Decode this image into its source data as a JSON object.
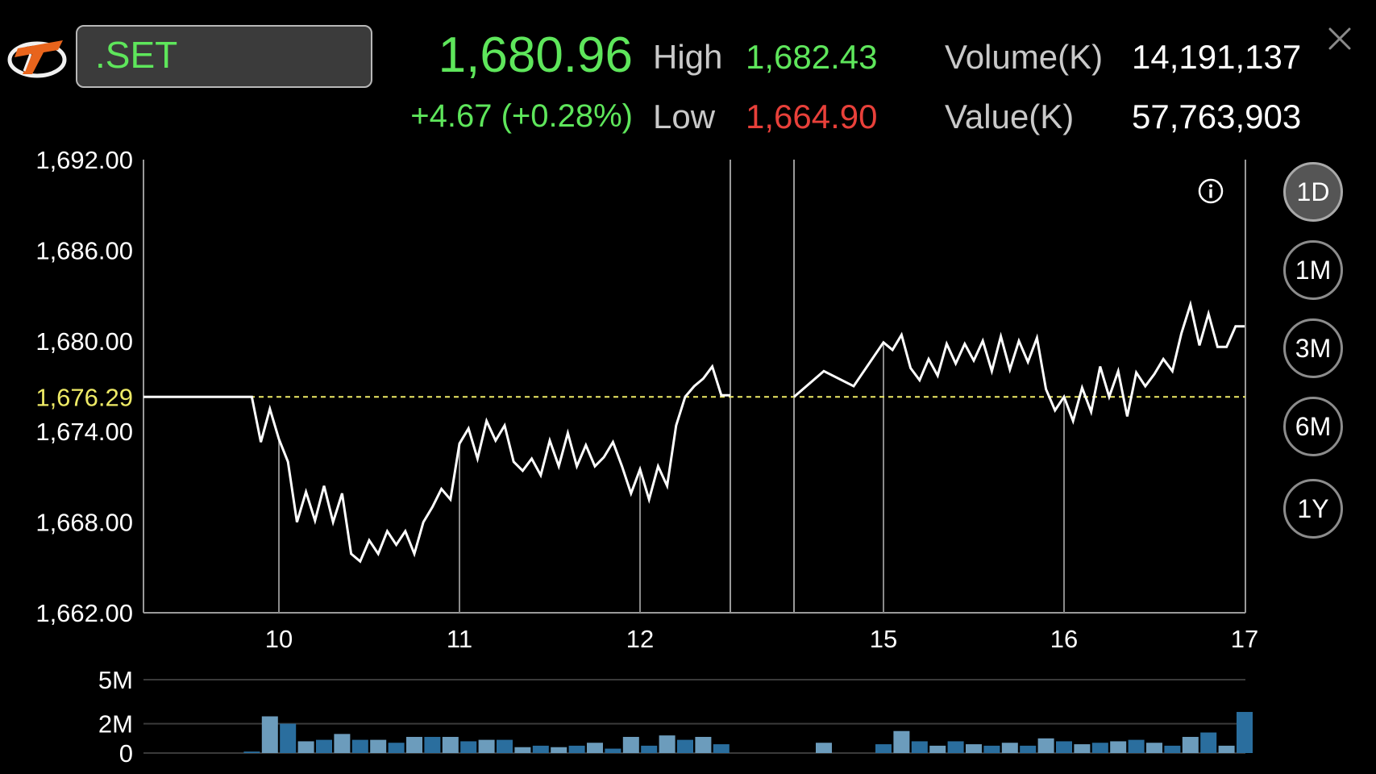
{
  "header": {
    "symbol": ".SET",
    "price": "1,680.96",
    "change": "+4.67 (+0.28%)",
    "high_label": "High",
    "high_value": "1,682.43",
    "low_label": "Low",
    "low_value": "1,664.90",
    "volume_label": "Volume(K)",
    "volume_value": "14,191,137",
    "value_label": "Value(K)",
    "value_value": "57,763,903"
  },
  "colors": {
    "up": "#5ee65b",
    "down": "#e8403a",
    "reference": "#eeea66",
    "line": "#ffffff",
    "volume_dark": "#2a6e9e",
    "volume_light": "#6c9cbc"
  },
  "icons": {
    "logo": "settrade-logo",
    "close": "close-icon",
    "info": "info-icon"
  },
  "periods": [
    {
      "label": "1D",
      "active": true
    },
    {
      "label": "1M",
      "active": false
    },
    {
      "label": "3M",
      "active": false
    },
    {
      "label": "6M",
      "active": false
    },
    {
      "label": "1Y",
      "active": false
    }
  ],
  "chart_data": {
    "type": "line",
    "title": "",
    "xlabel": "",
    "ylabel": "",
    "ylim": [
      1662,
      1692
    ],
    "y_ticks": [
      {
        "value": 1692,
        "label": "1,692.00"
      },
      {
        "value": 1686,
        "label": "1,686.00"
      },
      {
        "value": 1680,
        "label": "1,680.00"
      },
      {
        "value": 1674,
        "label": "1,674.00"
      },
      {
        "value": 1668,
        "label": "1,668.00"
      },
      {
        "value": 1662,
        "label": "1,662.00"
      }
    ],
    "reference_line": {
      "value": 1676.29,
      "label": "1,676.29"
    },
    "x_range": [
      9.25,
      17
    ],
    "x_ticks": [
      {
        "value": 10,
        "label": "10"
      },
      {
        "value": 11,
        "label": "11"
      },
      {
        "value": 12,
        "label": "12"
      },
      {
        "value": 15,
        "label": "15"
      },
      {
        "value": 16,
        "label": "16"
      },
      {
        "value": 17,
        "label": "17"
      }
    ],
    "session_gap": [
      12.5,
      14.85
    ],
    "series": [
      {
        "segments": [
          [
            [
              9.25,
              1676.29
            ],
            [
              9.85,
              1676.29
            ],
            [
              9.9,
              1673.3
            ],
            [
              9.95,
              1675.5
            ],
            [
              10.0,
              1673.5
            ],
            [
              10.05,
              1672
            ],
            [
              10.1,
              1668
            ],
            [
              10.15,
              1670
            ],
            [
              10.2,
              1668.1
            ],
            [
              10.25,
              1670.4
            ],
            [
              10.3,
              1668
            ],
            [
              10.35,
              1669.9
            ],
            [
              10.4,
              1665.9
            ],
            [
              10.45,
              1665.4
            ],
            [
              10.5,
              1666.8
            ],
            [
              10.55,
              1665.9
            ],
            [
              10.6,
              1667.4
            ],
            [
              10.65,
              1666.5
            ],
            [
              10.7,
              1667.4
            ],
            [
              10.75,
              1665.9
            ],
            [
              10.8,
              1668
            ],
            [
              10.85,
              1669
            ],
            [
              10.9,
              1670.2
            ],
            [
              10.95,
              1669.5
            ],
            [
              11.0,
              1673.2
            ],
            [
              11.05,
              1674.2
            ],
            [
              11.1,
              1672.2
            ],
            [
              11.15,
              1674.7
            ],
            [
              11.2,
              1673.4
            ],
            [
              11.25,
              1674.4
            ],
            [
              11.3,
              1672
            ],
            [
              11.35,
              1671.4
            ],
            [
              11.4,
              1672.2
            ],
            [
              11.45,
              1671.1
            ],
            [
              11.5,
              1673.4
            ],
            [
              11.55,
              1671.7
            ],
            [
              11.6,
              1673.9
            ],
            [
              11.65,
              1671.7
            ],
            [
              11.7,
              1673.1
            ],
            [
              11.75,
              1671.7
            ],
            [
              11.8,
              1672.3
            ],
            [
              11.85,
              1673.3
            ],
            [
              11.9,
              1671.7
            ],
            [
              11.95,
              1669.9
            ],
            [
              12.0,
              1671.5
            ],
            [
              12.05,
              1669.5
            ],
            [
              12.1,
              1671.7
            ],
            [
              12.15,
              1670.4
            ],
            [
              12.2,
              1674.4
            ],
            [
              12.25,
              1676.3
            ],
            [
              12.3,
              1677
            ],
            [
              12.35,
              1677.5
            ],
            [
              12.4,
              1678.3
            ],
            [
              12.45,
              1676.4
            ],
            [
              12.5,
              1676.4
            ]
          ],
          [
            [
              14.85,
              1676.29
            ],
            [
              14.9,
              1678
            ],
            [
              14.95,
              1677
            ],
            [
              15.0,
              1679.9
            ],
            [
              15.05,
              1679.4
            ],
            [
              15.1,
              1680.4
            ],
            [
              15.15,
              1678.2
            ],
            [
              15.2,
              1677.4
            ],
            [
              15.25,
              1678.8
            ],
            [
              15.3,
              1677.7
            ],
            [
              15.35,
              1679.8
            ],
            [
              15.4,
              1678.5
            ],
            [
              15.45,
              1679.8
            ],
            [
              15.5,
              1678.7
            ],
            [
              15.55,
              1680
            ],
            [
              15.6,
              1678
            ],
            [
              15.65,
              1680.3
            ],
            [
              15.7,
              1678.1
            ],
            [
              15.75,
              1680
            ],
            [
              15.8,
              1678.6
            ],
            [
              15.85,
              1680.2
            ],
            [
              15.9,
              1676.8
            ],
            [
              15.95,
              1675.4
            ],
            [
              16.0,
              1676.3
            ],
            [
              16.05,
              1674.7
            ],
            [
              16.1,
              1676.9
            ],
            [
              16.15,
              1675.3
            ],
            [
              16.2,
              1678.3
            ],
            [
              16.25,
              1676.3
            ],
            [
              16.3,
              1678
            ],
            [
              16.35,
              1675
            ],
            [
              16.4,
              1677.9
            ],
            [
              16.45,
              1677
            ],
            [
              16.5,
              1677.8
            ],
            [
              16.55,
              1678.8
            ],
            [
              16.6,
              1678
            ],
            [
              16.65,
              1680.5
            ],
            [
              16.7,
              1682.4
            ],
            [
              16.75,
              1679.7
            ],
            [
              16.8,
              1681.8
            ],
            [
              16.85,
              1679.6
            ],
            [
              16.9,
              1679.6
            ],
            [
              16.95,
              1680.96
            ],
            [
              17.0,
              1680.96
            ]
          ]
        ]
      }
    ],
    "volume": {
      "ylim": [
        0,
        5000000
      ],
      "y_ticks": [
        {
          "value": 5000000,
          "label": "5M"
        },
        {
          "value": 2000000,
          "label": "2M"
        },
        {
          "value": 0,
          "label": "0"
        }
      ],
      "bars": [
        [
          9.85,
          0.1
        ],
        [
          9.95,
          2.5
        ],
        [
          10.05,
          2.0
        ],
        [
          10.15,
          0.8
        ],
        [
          10.25,
          0.9
        ],
        [
          10.35,
          1.3
        ],
        [
          10.45,
          0.9
        ],
        [
          10.55,
          0.9
        ],
        [
          10.65,
          0.7
        ],
        [
          10.75,
          1.1
        ],
        [
          10.85,
          1.1
        ],
        [
          10.95,
          1.1
        ],
        [
          11.05,
          0.8
        ],
        [
          11.15,
          0.9
        ],
        [
          11.25,
          0.9
        ],
        [
          11.35,
          0.4
        ],
        [
          11.45,
          0.5
        ],
        [
          11.55,
          0.4
        ],
        [
          11.65,
          0.5
        ],
        [
          11.75,
          0.7
        ],
        [
          11.85,
          0.3
        ],
        [
          11.95,
          1.1
        ],
        [
          12.05,
          0.5
        ],
        [
          12.15,
          1.2
        ],
        [
          12.25,
          0.9
        ],
        [
          12.35,
          1.1
        ],
        [
          12.45,
          0.6
        ],
        [
          14.9,
          0.7
        ],
        [
          15.0,
          0.6
        ],
        [
          15.1,
          1.5
        ],
        [
          15.2,
          0.8
        ],
        [
          15.3,
          0.5
        ],
        [
          15.4,
          0.8
        ],
        [
          15.5,
          0.6
        ],
        [
          15.6,
          0.5
        ],
        [
          15.7,
          0.7
        ],
        [
          15.8,
          0.5
        ],
        [
          15.9,
          1.0
        ],
        [
          16.0,
          0.8
        ],
        [
          16.1,
          0.6
        ],
        [
          16.2,
          0.7
        ],
        [
          16.3,
          0.8
        ],
        [
          16.4,
          0.9
        ],
        [
          16.5,
          0.7
        ],
        [
          16.6,
          0.5
        ],
        [
          16.7,
          1.1
        ],
        [
          16.8,
          1.4
        ],
        [
          16.9,
          0.5
        ],
        [
          17.0,
          2.8
        ]
      ]
    }
  }
}
